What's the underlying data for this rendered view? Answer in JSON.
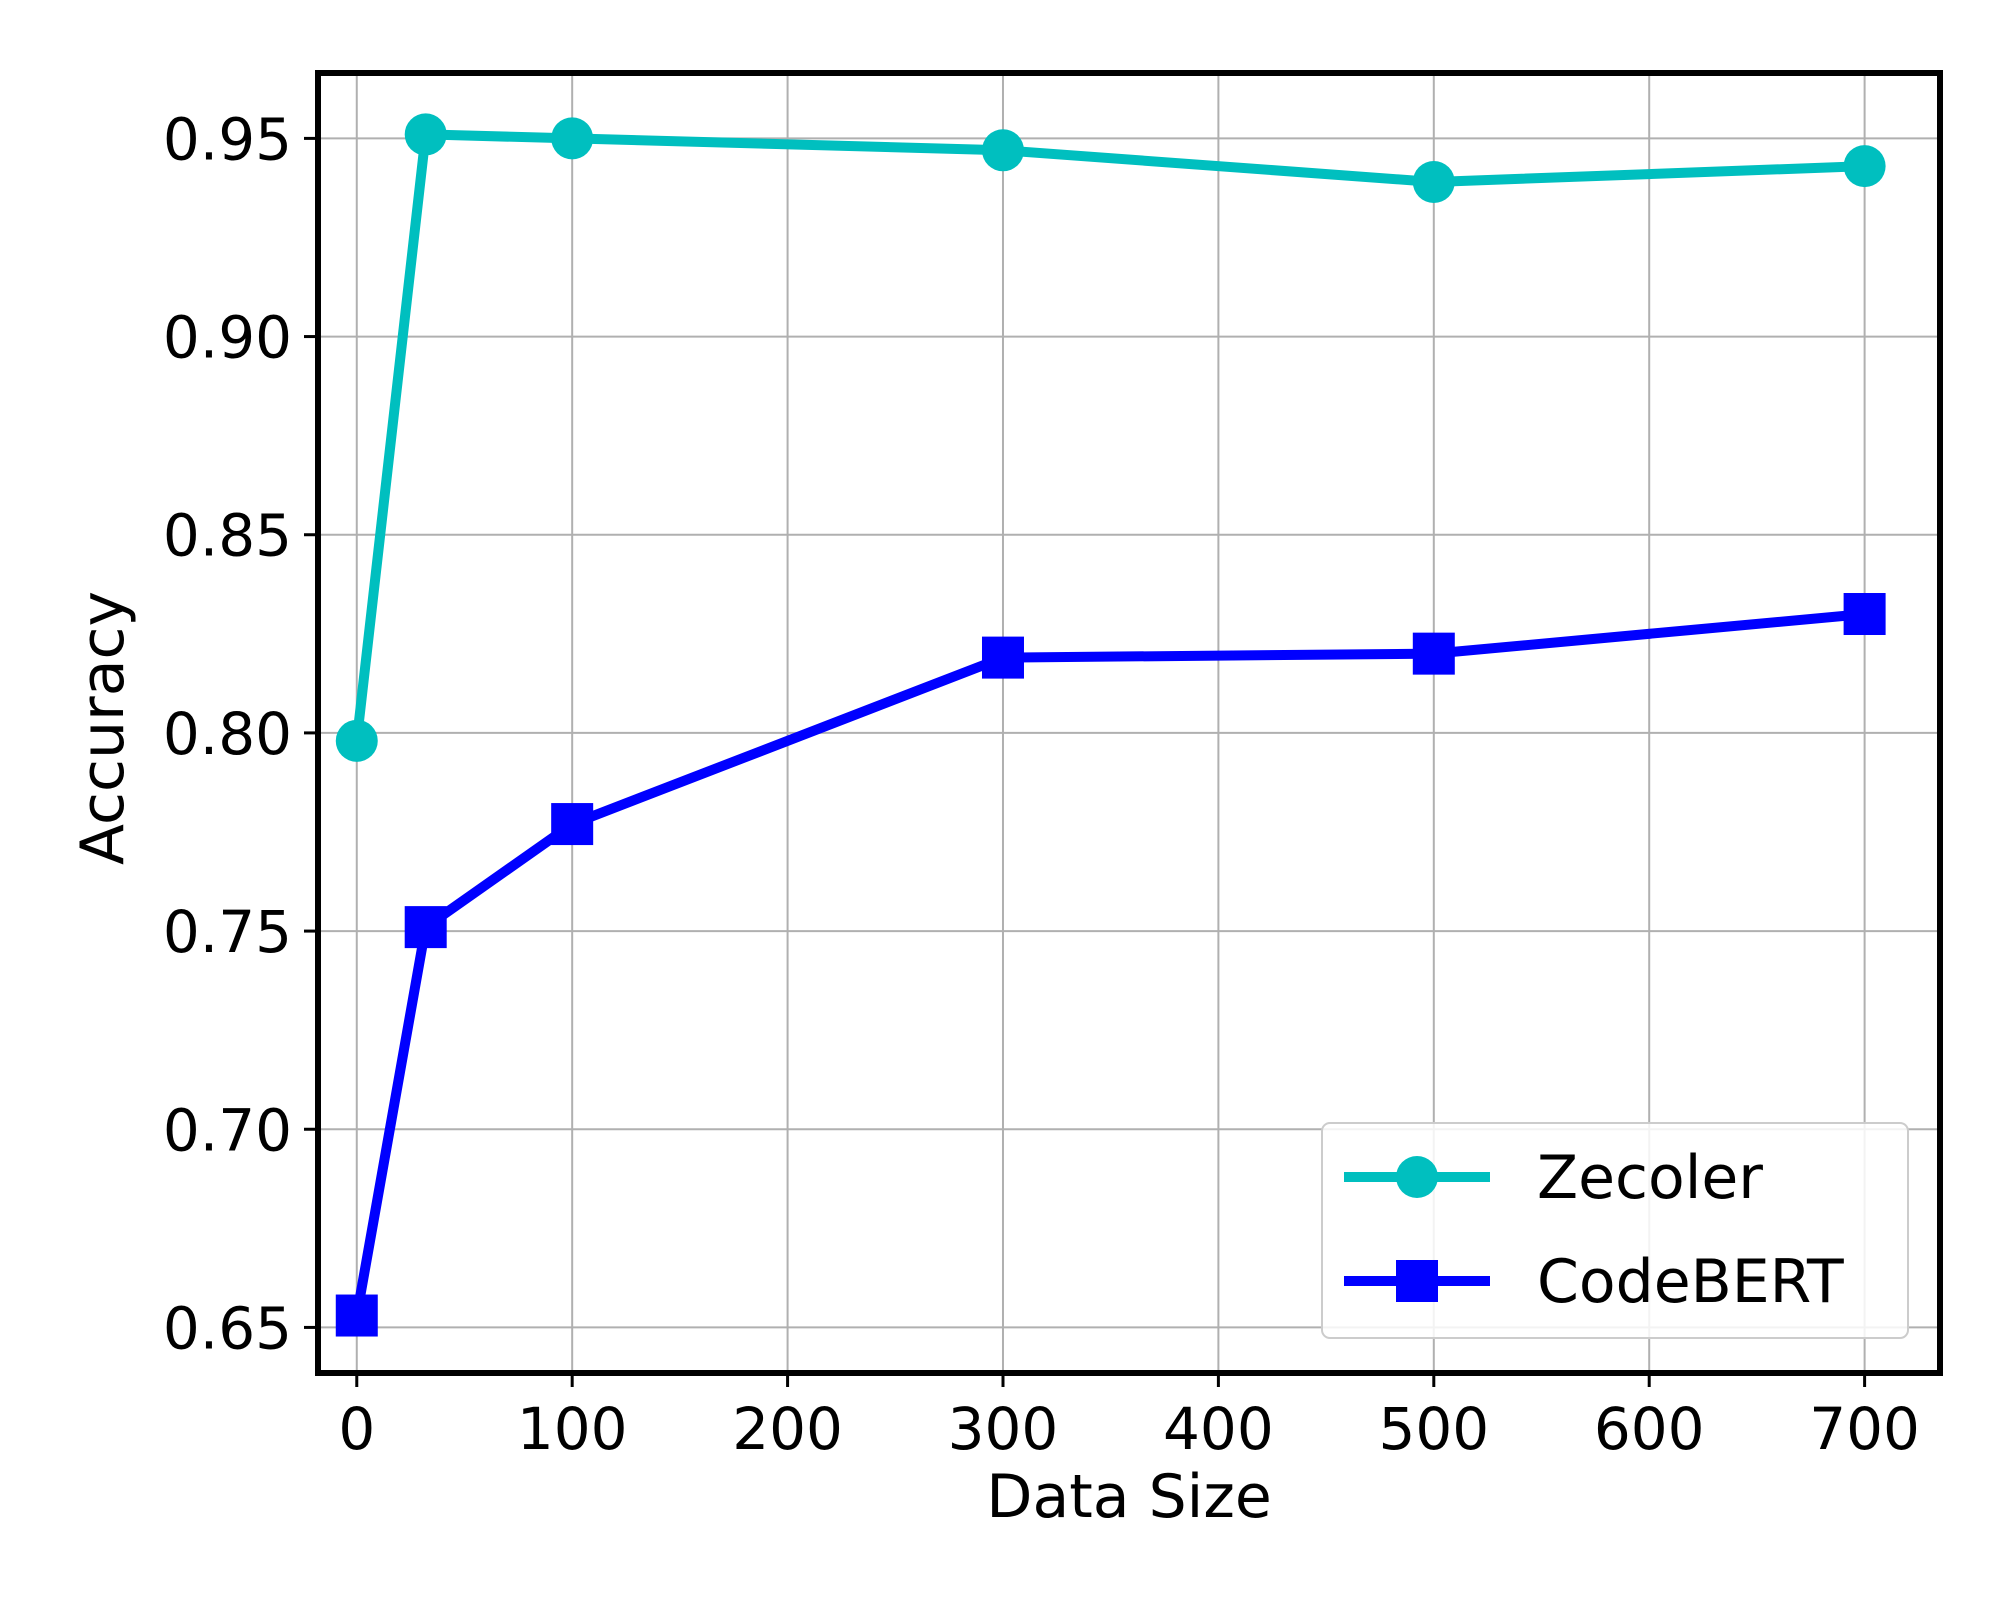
{
  "chart_data": {
    "type": "line",
    "title": "",
    "xlabel": "Data Size",
    "ylabel": "Accuracy",
    "xlim": [
      -18,
      735
    ],
    "ylim": [
      0.6385,
      0.9665
    ],
    "xticks": [
      0,
      100,
      200,
      300,
      400,
      500,
      600,
      700
    ],
    "xtick_labels": [
      "0",
      "100",
      "200",
      "300",
      "400",
      "500",
      "600",
      "700"
    ],
    "yticks": [
      0.65,
      0.7,
      0.75,
      0.8,
      0.85,
      0.9,
      0.95
    ],
    "ytick_labels": [
      "0.65",
      "0.70",
      "0.75",
      "0.80",
      "0.85",
      "0.90",
      "0.95"
    ],
    "grid": true,
    "legend_position": "bottom-right",
    "series": [
      {
        "name": "Zecoler",
        "color": "#00bfbf",
        "marker": "circle",
        "x": [
          0,
          32,
          100,
          300,
          500,
          700
        ],
        "y": [
          0.798,
          0.951,
          0.95,
          0.947,
          0.939,
          0.943
        ]
      },
      {
        "name": "CodeBERT",
        "color": "#0000ff",
        "marker": "square",
        "x": [
          0,
          32,
          100,
          300,
          500,
          700
        ],
        "y": [
          0.653,
          0.751,
          0.777,
          0.819,
          0.82,
          0.83
        ]
      }
    ]
  }
}
